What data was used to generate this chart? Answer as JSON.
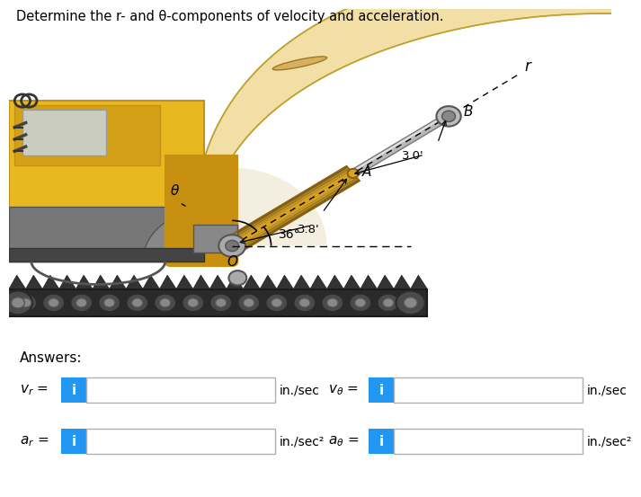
{
  "title": "Determine the r- and θ-components of velocity and acceleration.",
  "title_fontsize": 10.5,
  "bg_color": "#ffffff",
  "answers_label": "Answers:",
  "row1_left_unit": "in./sec",
  "row1_right_unit": "in./sec",
  "row2_left_unit": "in./sec²",
  "row2_right_unit": "in./sec²",
  "button_color": "#2196F3",
  "button_text": "i",
  "button_text_color": "#ffffff",
  "input_box_color": "#ffffff",
  "input_box_border": "#b0b0b0",
  "dim_30": "3.0'",
  "dim_38": "3.8'",
  "angle_label": "36°",
  "label_r": "r",
  "label_B": "B",
  "label_A": "A",
  "label_O": "O",
  "label_theta": "θ",
  "boom_color_light": "#F5DFA0",
  "boom_color_mid": "#E8C870",
  "boom_color_dark": "#C8A830",
  "cyl_gold": "#D4A020",
  "cyl_silver": "#C0C0C0",
  "body_yellow": "#E8B820",
  "body_dark": "#C89010",
  "track_dark": "#3a3a3a",
  "gray_dark": "#666666",
  "gray_mid": "#888888"
}
